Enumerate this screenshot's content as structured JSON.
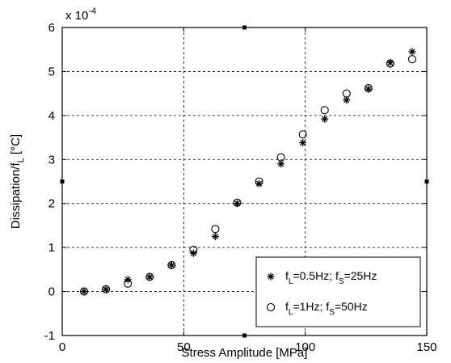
{
  "chart_data": {
    "type": "scatter",
    "xlabel": "Stress Amplitude [MPa]",
    "ylabel": "Dissipation/f_L [°C]",
    "y_multiplier": "x 10^-4",
    "xlim": [
      0,
      150
    ],
    "ylim": [
      -1,
      6
    ],
    "x_ticks": [
      0,
      50,
      100,
      150
    ],
    "y_ticks": [
      -1,
      0,
      1,
      2,
      3,
      4,
      5,
      6
    ],
    "grid": true,
    "legend_position": "bottom-right",
    "series": [
      {
        "name": "f_L=0.5Hz; f_S=25Hz",
        "marker": "star",
        "x": [
          9,
          18,
          27,
          36,
          45,
          54,
          63,
          72,
          81,
          90,
          99,
          108,
          117,
          126,
          135,
          144
        ],
        "y": [
          0.0,
          0.05,
          0.27,
          0.33,
          0.6,
          0.87,
          1.25,
          2.0,
          2.45,
          2.9,
          3.38,
          3.92,
          4.35,
          4.6,
          5.2,
          5.45
        ]
      },
      {
        "name": "f_L=1Hz; f_S=50Hz",
        "marker": "circle",
        "x": [
          9,
          18,
          27,
          36,
          45,
          54,
          63,
          72,
          81,
          90,
          99,
          108,
          117,
          126,
          135,
          144
        ],
        "y": [
          0.0,
          0.05,
          0.18,
          0.33,
          0.6,
          0.95,
          1.42,
          2.02,
          2.5,
          3.05,
          3.57,
          4.12,
          4.5,
          4.62,
          5.18,
          5.28
        ]
      }
    ]
  }
}
